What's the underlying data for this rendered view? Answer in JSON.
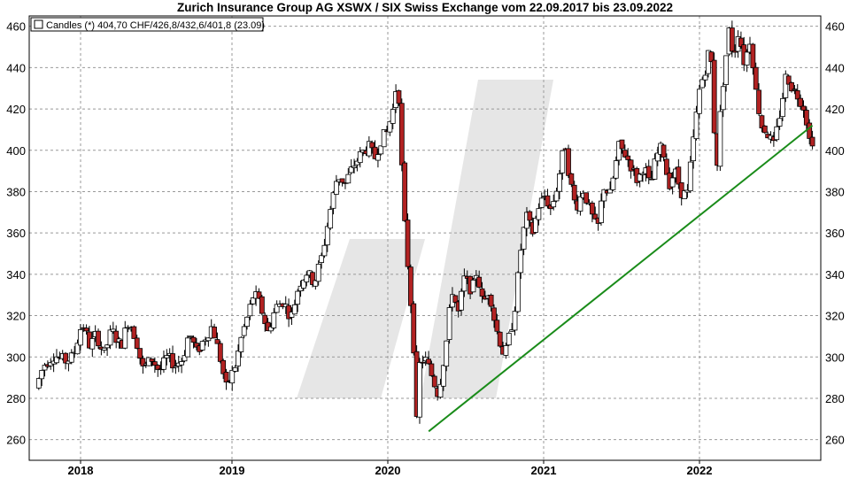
{
  "title": "Zurich Insurance Group AG XSWX / SIX Swiss Exchange vom 22.09.2017 bis 23.09.2022",
  "colors": {
    "up": "#ffffff",
    "down": "#b22222",
    "wick": "#000000",
    "trendline": "#1a8c1a",
    "grid": "#999999",
    "watermark": "#e6e6e6"
  },
  "chart_data": {
    "type": "candlestick",
    "title": "Zurich Insurance Group AG XSWX / SIX Swiss Exchange vom 22.09.2017 bis 23.09.2022",
    "legend": {
      "label": "Candles (*) 404,70 CHF/426,8/432,6/401,8 (23.09)",
      "position": "top-left"
    },
    "xlabel": "",
    "ylabel": "",
    "ylim": [
      250,
      465
    ],
    "y_ticks": [
      260,
      280,
      300,
      320,
      340,
      360,
      380,
      400,
      420,
      440,
      460
    ],
    "x_ticks": [
      "2018",
      "2019",
      "2020",
      "2021",
      "2022"
    ],
    "xlim": [
      2017.72,
      2022.75
    ],
    "grid": true,
    "trendline": {
      "x": [
        2020.25,
        2022.73
      ],
      "y": [
        264,
        412
      ]
    },
    "price_path": [
      [
        2017.73,
        285
      ],
      [
        2017.78,
        296
      ],
      [
        2017.85,
        301
      ],
      [
        2017.92,
        298
      ],
      [
        2017.97,
        300
      ],
      [
        2018.03,
        317
      ],
      [
        2018.08,
        305
      ],
      [
        2018.12,
        311
      ],
      [
        2018.17,
        301
      ],
      [
        2018.22,
        313
      ],
      [
        2018.28,
        305
      ],
      [
        2018.33,
        318
      ],
      [
        2018.38,
        308
      ],
      [
        2018.42,
        294
      ],
      [
        2018.48,
        299
      ],
      [
        2018.53,
        293
      ],
      [
        2018.58,
        300
      ],
      [
        2018.63,
        296
      ],
      [
        2018.68,
        299
      ],
      [
        2018.72,
        312
      ],
      [
        2018.77,
        302
      ],
      [
        2018.82,
        309
      ],
      [
        2018.87,
        315
      ],
      [
        2018.92,
        300
      ],
      [
        2018.96,
        285
      ],
      [
        2019.02,
        296
      ],
      [
        2019.06,
        310
      ],
      [
        2019.1,
        320
      ],
      [
        2019.14,
        331
      ],
      [
        2019.18,
        325
      ],
      [
        2019.23,
        312
      ],
      [
        2019.28,
        324
      ],
      [
        2019.33,
        327
      ],
      [
        2019.38,
        319
      ],
      [
        2019.43,
        335
      ],
      [
        2019.48,
        341
      ],
      [
        2019.53,
        336
      ],
      [
        2019.58,
        349
      ],
      [
        2019.63,
        370
      ],
      [
        2019.68,
        388
      ],
      [
        2019.73,
        384
      ],
      [
        2019.78,
        392
      ],
      [
        2019.83,
        398
      ],
      [
        2019.88,
        402
      ],
      [
        2019.92,
        396
      ],
      [
        2019.96,
        405
      ],
      [
        2020.0,
        409
      ],
      [
        2020.04,
        420
      ],
      [
        2020.07,
        437
      ],
      [
        2020.09,
        400
      ],
      [
        2020.11,
        368
      ],
      [
        2020.17,
        310
      ],
      [
        2020.19,
        266
      ],
      [
        2020.21,
        296
      ],
      [
        2020.24,
        300
      ],
      [
        2020.28,
        293
      ],
      [
        2020.33,
        282
      ],
      [
        2020.38,
        305
      ],
      [
        2020.42,
        333
      ],
      [
        2020.46,
        321
      ],
      [
        2020.5,
        338
      ],
      [
        2020.55,
        332
      ],
      [
        2020.58,
        342
      ],
      [
        2020.62,
        325
      ],
      [
        2020.66,
        333
      ],
      [
        2020.7,
        315
      ],
      [
        2020.76,
        300
      ],
      [
        2020.82,
        320
      ],
      [
        2020.87,
        356
      ],
      [
        2020.9,
        368
      ],
      [
        2020.94,
        360
      ],
      [
        2020.98,
        373
      ],
      [
        2021.02,
        378
      ],
      [
        2021.06,
        371
      ],
      [
        2021.1,
        383
      ],
      [
        2021.15,
        404
      ],
      [
        2021.18,
        386
      ],
      [
        2021.22,
        372
      ],
      [
        2021.27,
        381
      ],
      [
        2021.31,
        371
      ],
      [
        2021.36,
        361
      ],
      [
        2021.4,
        383
      ],
      [
        2021.44,
        378
      ],
      [
        2021.5,
        402
      ],
      [
        2021.54,
        398
      ],
      [
        2021.58,
        392
      ],
      [
        2021.62,
        385
      ],
      [
        2021.66,
        393
      ],
      [
        2021.7,
        382
      ],
      [
        2021.74,
        397
      ],
      [
        2021.78,
        402
      ],
      [
        2021.82,
        383
      ],
      [
        2021.86,
        390
      ],
      [
        2021.9,
        380
      ],
      [
        2021.94,
        378
      ],
      [
        2021.98,
        405
      ],
      [
        2022.02,
        430
      ],
      [
        2022.06,
        440
      ],
      [
        2022.09,
        452
      ],
      [
        2022.11,
        416
      ],
      [
        2022.13,
        390
      ],
      [
        2022.16,
        425
      ],
      [
        2022.19,
        445
      ],
      [
        2022.21,
        458
      ],
      [
        2022.24,
        445
      ],
      [
        2022.27,
        458
      ],
      [
        2022.31,
        442
      ],
      [
        2022.35,
        455
      ],
      [
        2022.38,
        430
      ],
      [
        2022.42,
        412
      ],
      [
        2022.46,
        408
      ],
      [
        2022.5,
        402
      ],
      [
        2022.54,
        418
      ],
      [
        2022.58,
        437
      ],
      [
        2022.62,
        430
      ],
      [
        2022.66,
        426
      ],
      [
        2022.7,
        420
      ],
      [
        2022.73,
        405
      ]
    ]
  }
}
